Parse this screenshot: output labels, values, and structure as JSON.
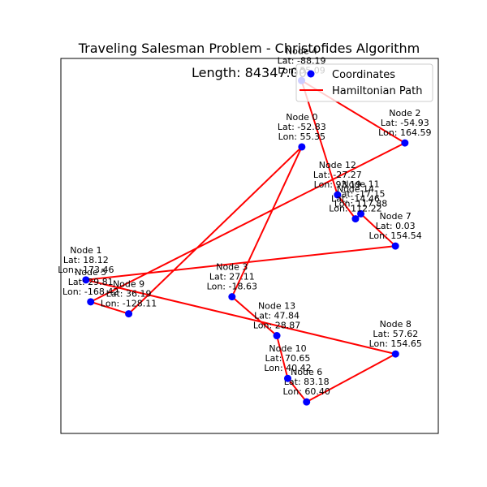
{
  "chart_data": {
    "type": "scatter",
    "title": "Traveling Salesman Problem - Christofides Algorithm",
    "length_label": "Length: 84347.00",
    "xlabel": "",
    "ylabel": "",
    "grid": false,
    "ticks_visible": false,
    "legend_placement": "top-right",
    "legend": [
      {
        "name": "Coordinates",
        "marker": "circle",
        "color": "#0000ff"
      },
      {
        "name": "Hamiltonian Path",
        "marker": "line",
        "color": "#ff0000"
      }
    ],
    "x_field": "lon",
    "y_field": "lat",
    "xlim": [
      -180,
      180
    ],
    "ylim": [
      -90,
      90
    ],
    "nodes": [
      {
        "name": "Node 0",
        "lat_label": "Lat: -52.83",
        "lon_label": "Lon: 55.35",
        "lat": -52.83,
        "lon": 55.35
      },
      {
        "name": "Node 1",
        "lat_label": "Lat: 18.12",
        "lon_label": "Lon: -173.46",
        "lat": 18.12,
        "lon": -173.46
      },
      {
        "name": "Node 2",
        "lat_label": "Lat: -54.93",
        "lon_label": "Lon: 164.59",
        "lat": -54.93,
        "lon": 164.59
      },
      {
        "name": "Node 3",
        "lat_label": "Lat: 27.11",
        "lon_label": "Lon: -18.63",
        "lat": 27.11,
        "lon": -18.63
      },
      {
        "name": "Node 4",
        "lat_label": "Lat: -88.19",
        "lon_label": "Lon: 55.09",
        "lat": -88.19,
        "lon": 55.09
      },
      {
        "name": "Node 5",
        "lat_label": "Lat: 29.81",
        "lon_label": "Lon: -168.42",
        "lat": 29.81,
        "lon": -168.42
      },
      {
        "name": "Node 6",
        "lat_label": "Lat: 83.18",
        "lon_label": "Lon: 60.40",
        "lat": 83.18,
        "lon": 60.4
      },
      {
        "name": "Node 7",
        "lat_label": "Lat: 0.03",
        "lon_label": "Lon: 154.54",
        "lat": 0.03,
        "lon": 154.54
      },
      {
        "name": "Node 8",
        "lat_label": "Lat: 57.62",
        "lon_label": "Lon: 154.65",
        "lat": 57.62,
        "lon": 154.65
      },
      {
        "name": "Node 9",
        "lat_label": "Lat: 36.19",
        "lon_label": "Lon: -128.11",
        "lat": 36.19,
        "lon": -128.11
      },
      {
        "name": "Node 10",
        "lat_label": "Lat: 70.65",
        "lon_label": "Lon: 40.42",
        "lat": 70.65,
        "lon": 40.42
      },
      {
        "name": "Node 11",
        "lat_label": "Lat: -17.15",
        "lon_label": "Lon: 117.88",
        "lat": -17.15,
        "lon": 117.88
      },
      {
        "name": "Node 12",
        "lat_label": "Lat: -27.27",
        "lon_label": "Lon: 93.19",
        "lat": -27.27,
        "lon": 93.19
      },
      {
        "name": "Node 13",
        "lat_label": "Lat: 47.84",
        "lon_label": "Lon: 28.87",
        "lat": 47.84,
        "lon": 28.87
      },
      {
        "name": "Node 14",
        "lat_label": "Lat: -14.46",
        "lon_label": "Lon: 112.22",
        "lat": -14.46,
        "lon": 112.22
      }
    ],
    "path_order": [
      4,
      2,
      5,
      9,
      0,
      3,
      13,
      10,
      6,
      8,
      1,
      7,
      11,
      14,
      12,
      4
    ]
  }
}
